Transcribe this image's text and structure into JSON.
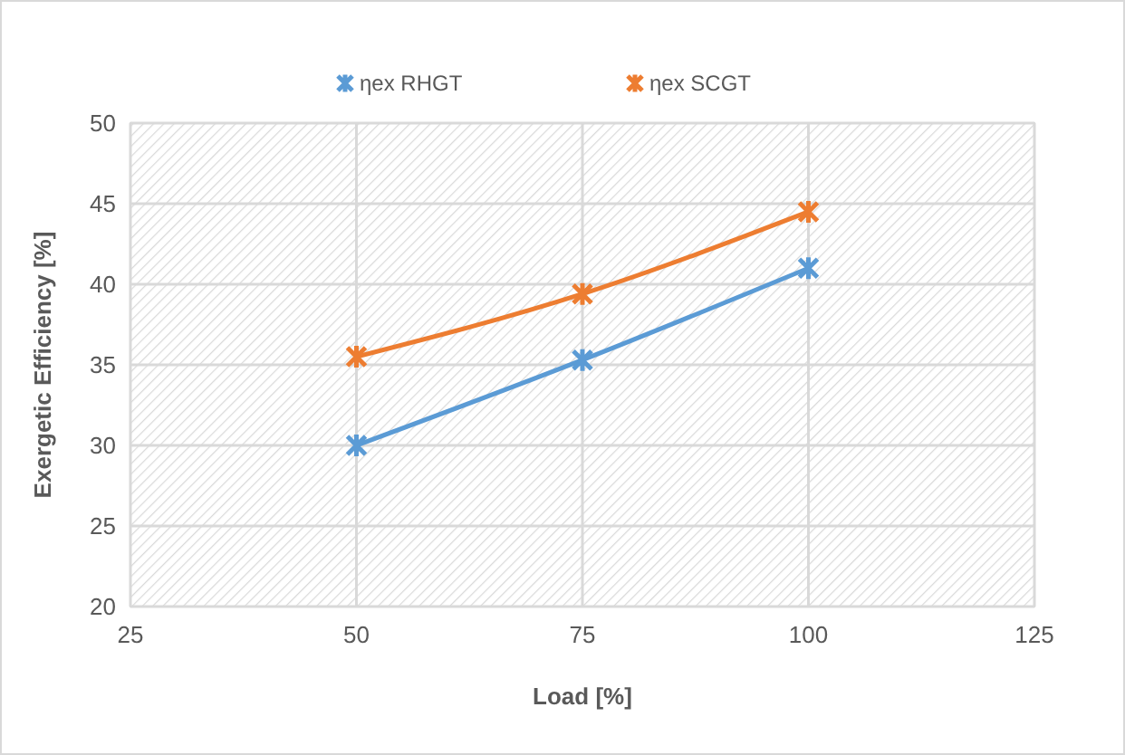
{
  "chart_data": {
    "type": "line",
    "xlabel": "Load [%]",
    "ylabel": "Exergetic Efficiency [%]",
    "x": [
      50,
      75,
      100
    ],
    "series": [
      {
        "name": "ηex RHGT",
        "color": "#5b9bd5",
        "values": [
          30,
          35.3,
          41
        ]
      },
      {
        "name": "ηex SCGT",
        "color": "#ed7d31",
        "values": [
          35.5,
          39.4,
          44.5
        ]
      }
    ],
    "xlim": [
      25,
      125
    ],
    "xticks": [
      25,
      50,
      75,
      100,
      125
    ],
    "ylim": [
      20,
      50
    ],
    "yticks": [
      20,
      25,
      30,
      35,
      40,
      45,
      50
    ],
    "grid": true,
    "legend": "top",
    "marker": "cross",
    "line_style": "solid"
  }
}
